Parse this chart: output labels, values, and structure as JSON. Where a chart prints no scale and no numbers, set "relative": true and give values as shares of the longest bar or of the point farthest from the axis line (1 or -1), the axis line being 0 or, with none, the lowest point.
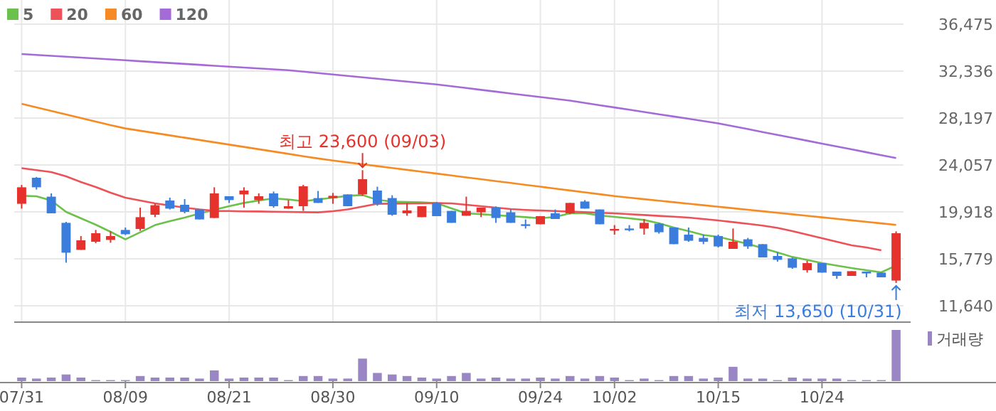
{
  "chart_data": [
    {
      "type": "candlestick",
      "categories": [
        null,
        null,
        null,
        null,
        null,
        null,
        null,
        null,
        null,
        null,
        null,
        null,
        null,
        null,
        null,
        null,
        null,
        null,
        null,
        null,
        null,
        null,
        null,
        null,
        null,
        null,
        null,
        null,
        null,
        null,
        null,
        null,
        null,
        null,
        null,
        null,
        null,
        null,
        null,
        null,
        null,
        null,
        null,
        null,
        null,
        null,
        null,
        null,
        null,
        null,
        null,
        null,
        null,
        null,
        null,
        null,
        null,
        null,
        null,
        null
      ],
      "ohlc": [
        [
          20634,
          22298,
          20208,
          22089
        ],
        [
          22930,
          23000,
          21889,
          22089
        ],
        [
          21262,
          21550,
          19795,
          19795
        ],
        [
          18954,
          19042,
          15442,
          16320
        ],
        [
          16571,
          17788,
          16571,
          17411
        ],
        [
          17286,
          18327,
          17161,
          18038
        ],
        [
          17449,
          18202,
          17198,
          17788
        ],
        [
          18327,
          18540,
          17876,
          17951
        ],
        [
          18415,
          20296,
          18252,
          19456
        ],
        [
          19669,
          20635,
          19456,
          20509
        ],
        [
          20923,
          21174,
          20133,
          20208
        ],
        [
          20547,
          21048,
          19795,
          19920
        ],
        [
          20133,
          20133,
          19255,
          19255
        ],
        [
          19381,
          22089,
          19381,
          21550
        ],
        [
          21300,
          21300,
          20710,
          20961
        ],
        [
          21462,
          22089,
          20296,
          21801
        ],
        [
          20961,
          21550,
          20635,
          21300
        ],
        [
          21550,
          21713,
          20296,
          20421
        ],
        [
          20208,
          20961,
          20208,
          20421
        ],
        [
          20421,
          22300,
          20007,
          22177
        ],
        [
          21137,
          21763,
          20710,
          20710
        ],
        [
          21137,
          21588,
          20635,
          21337
        ],
        [
          21462,
          21462,
          20421,
          20421
        ],
        [
          21462,
          23600,
          21337,
          22804
        ],
        [
          21801,
          22139,
          20459,
          20635
        ],
        [
          21137,
          21387,
          19581,
          19669
        ],
        [
          19795,
          20710,
          19581,
          20045
        ],
        [
          19456,
          20421,
          19456,
          20421
        ],
        [
          20710,
          20800,
          19544,
          19544
        ],
        [
          20007,
          20007,
          18954,
          18954
        ],
        [
          19581,
          21262,
          19581,
          20007
        ],
        [
          19882,
          20296,
          19456,
          20296
        ],
        [
          20296,
          20400,
          18954,
          19381
        ],
        [
          19882,
          20133,
          18954,
          18954
        ],
        [
          18829,
          19255,
          18452,
          18829
        ],
        [
          18829,
          19544,
          18829,
          19544
        ],
        [
          19795,
          20133,
          19293,
          19293
        ],
        [
          19795,
          20710,
          19707,
          20710
        ],
        [
          20835,
          20961,
          20208,
          20208
        ],
        [
          20133,
          20133,
          18829,
          18829
        ],
        [
          18289,
          18753,
          17913,
          18415
        ],
        [
          18452,
          18753,
          18202,
          18452
        ],
        [
          18452,
          19293,
          17913,
          18954
        ],
        [
          18879,
          18954,
          18000,
          18126
        ],
        [
          18540,
          18540,
          17073,
          17073
        ],
        [
          17913,
          18540,
          17286,
          17374
        ],
        [
          17624,
          17913,
          17073,
          17286
        ],
        [
          17788,
          17913,
          16784,
          16872
        ],
        [
          16659,
          18452,
          16659,
          17286
        ],
        [
          17500,
          17624,
          16659,
          16872
        ],
        [
          17073,
          17073,
          15906,
          15906
        ],
        [
          16031,
          16370,
          15531,
          15693
        ],
        [
          15819,
          15900,
          14900,
          14991
        ],
        [
          14778,
          15610,
          14566,
          15404
        ],
        [
          15404,
          15404,
          14564,
          14564
        ],
        [
          14652,
          14652,
          14025,
          14275
        ],
        [
          14275,
          14690,
          14275,
          14690
        ],
        [
          14652,
          14652,
          14150,
          14490
        ],
        [
          14564,
          14564,
          14150,
          14150
        ],
        [
          13862,
          18202,
          13650,
          18038
        ]
      ],
      "colors": [
        "#e5322d",
        "#3b7ddd",
        "#3b7ddd",
        "#3b7ddd",
        "#e5322d",
        "#e5322d",
        "#e5322d",
        "#3b7ddd",
        "#e5322d",
        "#e5322d",
        "#3b7ddd",
        "#3b7ddd",
        "#3b7ddd",
        "#e5322d",
        "#3b7ddd",
        "#e5322d",
        "#e5322d",
        "#3b7ddd",
        "#e5322d",
        "#e5322d",
        "#3b7ddd",
        "#e5322d",
        "#3b7ddd",
        "#e5322d",
        "#3b7ddd",
        "#3b7ddd",
        "#e5322d",
        "#e5322d",
        "#3b7ddd",
        "#3b7ddd",
        "#e5322d",
        "#e5322d",
        "#3b7ddd",
        "#3b7ddd",
        "#3b7ddd",
        "#e5322d",
        "#3b7ddd",
        "#e5322d",
        "#3b7ddd",
        "#3b7ddd",
        "#e5322d",
        "#3b7ddd",
        "#e5322d",
        "#3b7ddd",
        "#3b7ddd",
        "#3b7ddd",
        "#3b7ddd",
        "#3b7ddd",
        "#e5322d",
        "#3b7ddd",
        "#3b7ddd",
        "#3b7ddd",
        "#3b7ddd",
        "#e5322d",
        "#3b7ddd",
        "#3b7ddd",
        "#e5322d",
        "#3b7ddd",
        "#3b7ddd",
        "#e5322d"
      ],
      "series": [
        {
          "name": "5",
          "type": "line",
          "color": "#6cc14a",
          "values": [
            21337,
            21299,
            20923,
            19920,
            19355,
            18791,
            18164,
            17499,
            18126,
            18753,
            19105,
            19418,
            19770,
            20108,
            20421,
            20710,
            20923,
            21111,
            21011,
            20861,
            21011,
            21174,
            21337,
            21400,
            20986,
            20823,
            20798,
            20760,
            20685,
            20234,
            19794,
            19719,
            19631,
            19544,
            19456,
            19355,
            19481,
            19794,
            19794,
            19606,
            19481,
            19355,
            19205,
            18916,
            18540,
            18226,
            17875,
            17725,
            17411,
            17097,
            16721,
            16345,
            15944,
            15680,
            15404,
            15178,
            14965,
            14777,
            14589,
            15191
          ]
        },
        {
          "name": "20",
          "type": "line",
          "color": "#ec5257",
          "values": [
            23770,
            23607,
            23431,
            23055,
            22553,
            22114,
            21613,
            21174,
            20923,
            20672,
            20484,
            20296,
            20133,
            20007,
            19995,
            19969,
            19957,
            19932,
            19919,
            19894,
            19882,
            19982,
            20133,
            20384,
            20635,
            20647,
            20660,
            20672,
            20698,
            20672,
            20547,
            20421,
            20296,
            20170,
            20095,
            20045,
            19995,
            19945,
            19894,
            19844,
            19794,
            19719,
            19644,
            19568,
            19493,
            19418,
            19293,
            19167,
            19017,
            18866,
            18716,
            18502,
            18226,
            17913,
            17599,
            17285,
            16972,
            16784,
            16533,
            null
          ]
        },
        {
          "name": "60",
          "type": "line",
          "color": "#f58b22",
          "values": [
            29452,
            29139,
            28826,
            28513,
            28200,
            27887,
            27574,
            27280,
            27076,
            26872,
            26668,
            26464,
            26260,
            26056,
            25852,
            25648,
            25444,
            25240,
            25036,
            24832,
            24628,
            24450,
            24285,
            24120,
            23955,
            23790,
            23625,
            23460,
            23295,
            23130,
            22965,
            22800,
            22635,
            22470,
            22305,
            22140,
            21975,
            21810,
            21645,
            21480,
            21315,
            21170,
            21037,
            20904,
            20771,
            20638,
            20505,
            20372,
            20239,
            20106,
            19973,
            19840,
            19707,
            19574,
            19441,
            19308,
            19175,
            19042,
            18909,
            18776
          ]
        },
        {
          "name": "120",
          "type": "line",
          "color": "#a46ad8",
          "values": [
            33841,
            33762,
            33683,
            33604,
            33525,
            33446,
            33367,
            33288,
            33209,
            33130,
            33050,
            32970,
            32890,
            32810,
            32730,
            32650,
            32570,
            32490,
            32410,
            32285,
            32160,
            32035,
            31910,
            31785,
            31660,
            31535,
            31410,
            31285,
            31160,
            31001,
            30842,
            30683,
            30524,
            30365,
            30206,
            30047,
            29888,
            29729,
            29529,
            29329,
            29129,
            28929,
            28729,
            28529,
            28329,
            28129,
            27929,
            27729,
            27474,
            27219,
            26964,
            26709,
            26454,
            26199,
            25944,
            25689,
            25434,
            25179,
            24924,
            24669
          ]
        }
      ],
      "ylim": [
        11640,
        36475
      ],
      "yticks": [
        {
          "value": 11640,
          "label": "11,640"
        },
        {
          "value": 15779,
          "label": "15,779"
        },
        {
          "value": 19918,
          "label": "19,918"
        },
        {
          "value": 24057,
          "label": "24,057"
        },
        {
          "value": 28197,
          "label": "28,197"
        },
        {
          "value": 32336,
          "label": "32,336"
        },
        {
          "value": 36475,
          "label": "36,475"
        }
      ],
      "grid": true,
      "legend": "top left",
      "tick_labels": "y",
      "annotations": [
        "최고 23,600 (09/03)",
        "최저 13,650 (10/31)"
      ]
    },
    {
      "type": "bar",
      "relative": true,
      "categories": [
        "07/31",
        null,
        null,
        null,
        null,
        null,
        null,
        "08/09",
        null,
        null,
        null,
        null,
        null,
        null,
        "08/21",
        null,
        null,
        null,
        null,
        null,
        null,
        "08/30",
        null,
        null,
        null,
        null,
        null,
        null,
        "09/10",
        null,
        null,
        null,
        null,
        null,
        null,
        "09/24",
        null,
        null,
        null,
        null,
        "10/02",
        null,
        null,
        null,
        null,
        null,
        null,
        "10/15",
        null,
        null,
        null,
        null,
        null,
        null,
        "10/24",
        null,
        null,
        null,
        null,
        null
      ],
      "series": [
        {
          "name": "거래량",
          "color": "#9a86c4",
          "values": [
            0.07,
            0.05,
            0.07,
            0.13,
            0.07,
            0.02,
            0.02,
            0.02,
            0.1,
            0.07,
            0.07,
            0.07,
            0.05,
            0.21,
            0.05,
            0.07,
            0.07,
            0.07,
            0.02,
            0.1,
            0.1,
            0.05,
            0.05,
            0.44,
            0.16,
            0.13,
            0.1,
            0.07,
            0.05,
            0.1,
            0.16,
            0.05,
            0.07,
            0.05,
            0.05,
            0.07,
            0.05,
            0.1,
            0.05,
            0.1,
            0.07,
            0.02,
            0.05,
            0.02,
            0.1,
            0.1,
            0.05,
            0.07,
            0.28,
            0.05,
            0.05,
            0.02,
            0.07,
            0.05,
            0.05,
            0.05,
            0.02,
            0.02,
            0.02,
            1
          ]
        }
      ],
      "tick_labels": "x",
      "legend": "right"
    }
  ]
}
